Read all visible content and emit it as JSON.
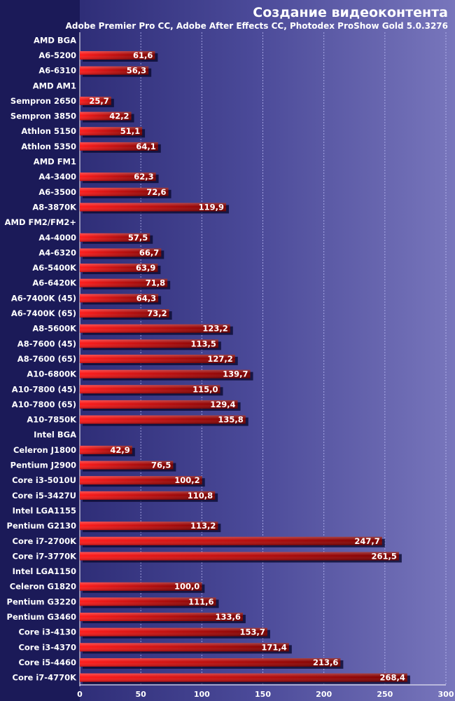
{
  "chart_data": {
    "type": "bar",
    "orientation": "horizontal",
    "title": "Создание видеоконтента",
    "subtitle": "Adobe Premier Pro CC, Adobe After Effects CC, Photodex ProShow Gold 5.0.3276",
    "xlabel": "",
    "ylabel": "",
    "xlim": [
      0,
      300
    ],
    "xticks": [
      0,
      50,
      100,
      150,
      200,
      250,
      300
    ],
    "grid": true,
    "categories": [
      "AMD BGA",
      "A6-5200",
      "A6-6310",
      "AMD AM1",
      "Sempron 2650",
      "Sempron 3850",
      "Athlon 5150",
      "Athlon 5350",
      "AMD FM1",
      "A4-3400",
      "A6-3500",
      "A8-3870K",
      "AMD FM2/FM2+",
      "A4-4000",
      "A4-6320",
      "A6-5400K",
      "A6-6420K",
      "A6-7400K (45)",
      "A6-7400K (65)",
      "A8-5600K",
      "A8-7600 (45)",
      "A8-7600 (65)",
      "A10-6800K",
      "A10-7800 (45)",
      "A10-7800 (65)",
      "A10-7850K",
      "Intel BGA",
      "Celeron J1800",
      "Pentium J2900",
      "Core i3-5010U",
      "Core i5-3427U",
      "Intel LGA1155",
      "Pentium G2130",
      "Core i7-2700K",
      "Core i7-3770K",
      "Intel LGA1150",
      "Celeron G1820",
      "Pentium G3220",
      "Pentium G3460",
      "Core i3-4130",
      "Core i3-4370",
      "Core i5-4460",
      "Core i7-4770K"
    ],
    "values": [
      null,
      61.6,
      56.3,
      null,
      25.7,
      42.2,
      51.1,
      64.1,
      null,
      62.3,
      72.6,
      119.9,
      null,
      57.5,
      66.7,
      63.9,
      71.8,
      64.3,
      73.2,
      123.2,
      113.5,
      127.2,
      139.7,
      115.0,
      129.4,
      135.8,
      null,
      42.9,
      76.5,
      100.2,
      110.8,
      null,
      113.2,
      247.7,
      261.5,
      null,
      100.0,
      111.6,
      133.6,
      153.7,
      171.4,
      213.6,
      268.4
    ],
    "value_labels": [
      "",
      "61,6",
      "56,3",
      "",
      "25,7",
      "42,2",
      "51,1",
      "64,1",
      "",
      "62,3",
      "72,6",
      "119,9",
      "",
      "57,5",
      "66,7",
      "63,9",
      "71,8",
      "64,3",
      "73,2",
      "123,2",
      "113,5",
      "127,2",
      "139,7",
      "115,0",
      "129,4",
      "135,8",
      "",
      "42,9",
      "76,5",
      "100,2",
      "110,8",
      "",
      "113,2",
      "247,7",
      "261,5",
      "",
      "100,0",
      "111,6",
      "133,6",
      "153,7",
      "171,4",
      "213,6",
      "268,4"
    ],
    "colors": {
      "bar_light": "#ff1a1a",
      "bar_dark": "#7a0000",
      "bar_shadow": "#0a0a30",
      "grid": "#c8c8ff",
      "text": "#ffffff"
    }
  }
}
